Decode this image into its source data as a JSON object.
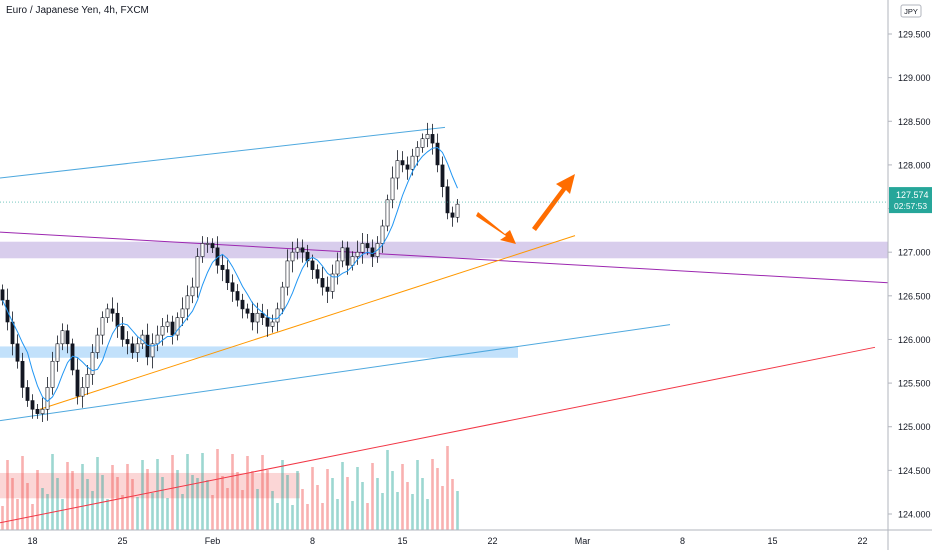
{
  "header": {
    "title": "Euro / Japanese Yen, 4h, FXCM"
  },
  "price_axis": {
    "currency": "JPY",
    "current_price": "127.574",
    "countdown": "02:57:53"
  },
  "colors": {
    "up": "#26a69a",
    "down": "#ef5350",
    "ma": "#2196f3",
    "channel": "#4ea8de",
    "purple_line": "#9c27b0",
    "orange_line": "#ff9800",
    "red_line": "#f23645",
    "purple_zone": "#d1c4e9",
    "blue_zone": "#bbdefb",
    "arrow": "#ff6d00",
    "price_label": "#26a69a"
  },
  "chart_data": {
    "type": "candlestick",
    "title": "Euro / Japanese Yen, 4h, FXCM",
    "symbol": "EURJPY",
    "timeframe": "4h",
    "source": "FXCM",
    "ylim": [
      123.85,
      130.0
    ],
    "yticks": [
      "129.500",
      "129.000",
      "128.500",
      "128.000",
      "127.500",
      "127.000",
      "126.500",
      "126.000",
      "125.500",
      "125.000",
      "124.500",
      "124.000"
    ],
    "yticks_values": [
      129.5,
      129.0,
      128.5,
      128.0,
      127.5,
      127.0,
      126.5,
      126.0,
      125.5,
      125.0,
      124.5,
      124.0
    ],
    "xticks": [
      {
        "label": "18",
        "bar": 6
      },
      {
        "label": "25",
        "bar": 24
      },
      {
        "label": "Feb",
        "bar": 42
      },
      {
        "label": "8",
        "bar": 62
      },
      {
        "label": "15",
        "bar": 80
      },
      {
        "label": "22",
        "bar": 98
      },
      {
        "label": "Mar",
        "bar": 116
      },
      {
        "label": "8",
        "bar": 136
      },
      {
        "label": "15",
        "bar": 154
      },
      {
        "label": "22",
        "bar": 172
      }
    ],
    "closes": [
      126.45,
      126.2,
      125.95,
      125.75,
      125.45,
      125.3,
      125.2,
      125.15,
      125.2,
      125.45,
      125.75,
      125.95,
      126.1,
      125.95,
      125.65,
      125.35,
      125.45,
      125.6,
      125.85,
      126.05,
      126.25,
      126.35,
      126.3,
      126.15,
      126.0,
      125.95,
      125.85,
      125.95,
      126.05,
      125.8,
      125.95,
      126.05,
      126.15,
      126.2,
      126.05,
      126.25,
      126.35,
      126.5,
      126.6,
      126.95,
      127.1,
      127.1,
      127.05,
      126.85,
      126.8,
      126.65,
      126.55,
      126.45,
      126.35,
      126.3,
      126.2,
      126.3,
      126.25,
      126.15,
      126.2,
      126.35,
      126.6,
      126.9,
      127.0,
      127.05,
      127.0,
      126.9,
      126.8,
      126.7,
      126.6,
      126.55,
      126.75,
      126.9,
      127.05,
      126.85,
      126.95,
      127.0,
      127.1,
      127.05,
      126.95,
      127.1,
      127.3,
      127.6,
      127.85,
      128.05,
      128.0,
      127.95,
      128.1,
      128.2,
      128.3,
      128.35,
      128.25,
      128.0,
      127.75,
      127.45,
      127.4,
      127.55
    ]
  }
}
